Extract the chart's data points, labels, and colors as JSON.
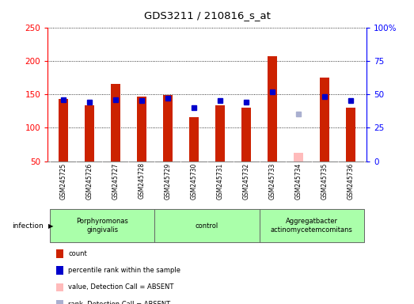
{
  "title": "GDS3211 / 210816_s_at",
  "samples": [
    "GSM245725",
    "GSM245726",
    "GSM245727",
    "GSM245728",
    "GSM245729",
    "GSM245730",
    "GSM245731",
    "GSM245732",
    "GSM245733",
    "GSM245734",
    "GSM245735",
    "GSM245736"
  ],
  "counts": [
    143,
    133,
    165,
    146,
    149,
    116,
    133,
    130,
    207,
    null,
    175,
    130
  ],
  "absent_counts": [
    null,
    null,
    null,
    null,
    null,
    null,
    null,
    null,
    null,
    63,
    null,
    null
  ],
  "ranks": [
    46,
    44,
    46,
    45,
    47,
    40,
    45,
    44,
    52,
    null,
    48,
    45
  ],
  "absent_ranks": [
    null,
    null,
    null,
    null,
    null,
    null,
    null,
    null,
    null,
    35,
    null,
    null
  ],
  "ylim_left": [
    50,
    250
  ],
  "ylim_right": [
    0,
    100
  ],
  "yticks_left": [
    50,
    100,
    150,
    200,
    250
  ],
  "yticks_right": [
    0,
    25,
    50,
    75,
    100
  ],
  "groups": [
    {
      "label": "Porphyromonas\ngingivalis",
      "start": 0,
      "end": 3
    },
    {
      "label": "control",
      "start": 4,
      "end": 7
    },
    {
      "label": "Aggregatbacter\nactinomycetemcomitans",
      "start": 8,
      "end": 11
    }
  ],
  "infection_label": "infection",
  "bar_color": "#cc2200",
  "absent_bar_color": "#ffbbbb",
  "rank_color": "#0000cc",
  "absent_rank_color": "#aab0d0",
  "group_color": "#aaffaa",
  "sample_bg_color": "#cccccc",
  "legend_items": [
    {
      "color": "#cc2200",
      "label": "count"
    },
    {
      "color": "#0000cc",
      "label": "percentile rank within the sample"
    },
    {
      "color": "#ffbbbb",
      "label": "value, Detection Call = ABSENT"
    },
    {
      "color": "#aab0d0",
      "label": "rank, Detection Call = ABSENT"
    }
  ],
  "bar_width": 0.38,
  "rank_marker_size": 5
}
